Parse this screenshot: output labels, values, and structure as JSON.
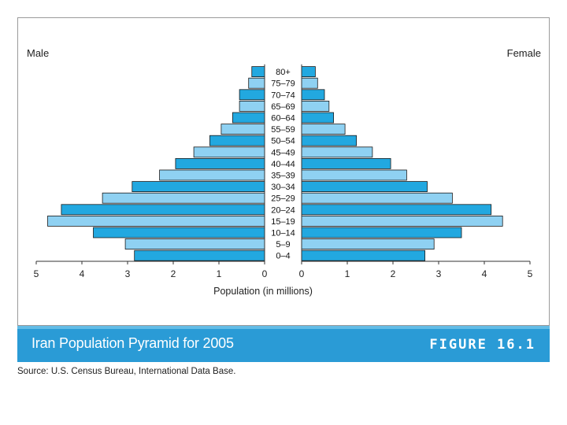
{
  "chart_data": {
    "type": "bar",
    "orientation": "horizontal",
    "layout": "population-pyramid",
    "title": "Iran Population Pyramid for 2005",
    "figure_label": "FIGURE 16.1",
    "source": "Source: U.S. Census Bureau, International Data Base.",
    "xlabel": "Population (in millions)",
    "left_label": "Male",
    "right_label": "Female",
    "x_ticks_left": [
      "5",
      "4",
      "3",
      "2",
      "1",
      "0"
    ],
    "x_ticks_right": [
      "0",
      "1",
      "2",
      "3",
      "4",
      "5"
    ],
    "xlim": [
      0,
      5
    ],
    "categories": [
      "0–4",
      "5–9",
      "10–14",
      "15–19",
      "20–24",
      "25–29",
      "30–34",
      "35–39",
      "40–44",
      "45–49",
      "50–54",
      "55–59",
      "60–64",
      "65–69",
      "70–74",
      "75–79",
      "80+"
    ],
    "series": [
      {
        "name": "Male",
        "values": [
          2.85,
          3.05,
          3.75,
          4.75,
          4.45,
          3.55,
          2.9,
          2.3,
          1.95,
          1.55,
          1.2,
          0.95,
          0.7,
          0.55,
          0.55,
          0.35,
          0.28
        ]
      },
      {
        "name": "Female",
        "values": [
          2.7,
          2.9,
          3.5,
          4.4,
          4.15,
          3.3,
          2.75,
          2.3,
          1.95,
          1.55,
          1.2,
          0.95,
          0.7,
          0.6,
          0.5,
          0.35,
          0.3
        ]
      }
    ],
    "colors": {
      "bar_dark": "#22a8e0",
      "bar_light": "#8fd1f2",
      "bar_outline": "#1a1a1a"
    },
    "grid": false
  },
  "caption_bar_color": "#2a9bd6"
}
